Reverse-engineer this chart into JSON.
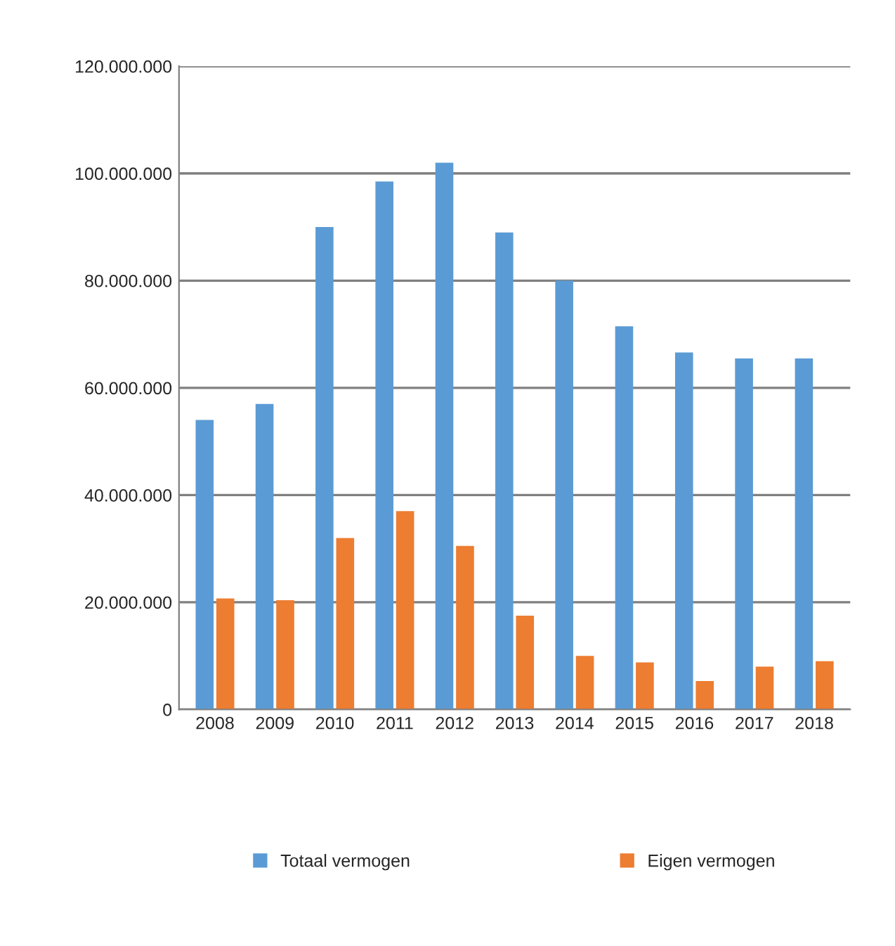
{
  "chart_data": {
    "type": "bar",
    "categories": [
      "2008",
      "2009",
      "2010",
      "2011",
      "2012",
      "2013",
      "2014",
      "2015",
      "2016",
      "2017",
      "2018"
    ],
    "series": [
      {
        "name": "Totaal vermogen",
        "color": "#5b9bd5",
        "values": [
          54000000,
          57000000,
          90000000,
          98500000,
          102000000,
          89000000,
          80000000,
          71500000,
          66600000,
          65500000,
          65500000
        ]
      },
      {
        "name": "Eigen vermogen",
        "color": "#ed7d31",
        "values": [
          20700000,
          20400000,
          32000000,
          37000000,
          30500000,
          17500000,
          10000000,
          8800000,
          5300000,
          8000000,
          9000000
        ]
      }
    ],
    "ylim": [
      0,
      120000000
    ],
    "yticks": [
      {
        "value": 0,
        "label": "0"
      },
      {
        "value": 20000000,
        "label": "20.000.000"
      },
      {
        "value": 40000000,
        "label": "40.000.000"
      },
      {
        "value": 60000000,
        "label": "60.000.000"
      },
      {
        "value": 80000000,
        "label": "80.000.000"
      },
      {
        "value": 100000000,
        "label": "100.000.000"
      },
      {
        "value": 120000000,
        "label": "120.000.000"
      }
    ],
    "grid": "y",
    "legend": "bottom"
  }
}
